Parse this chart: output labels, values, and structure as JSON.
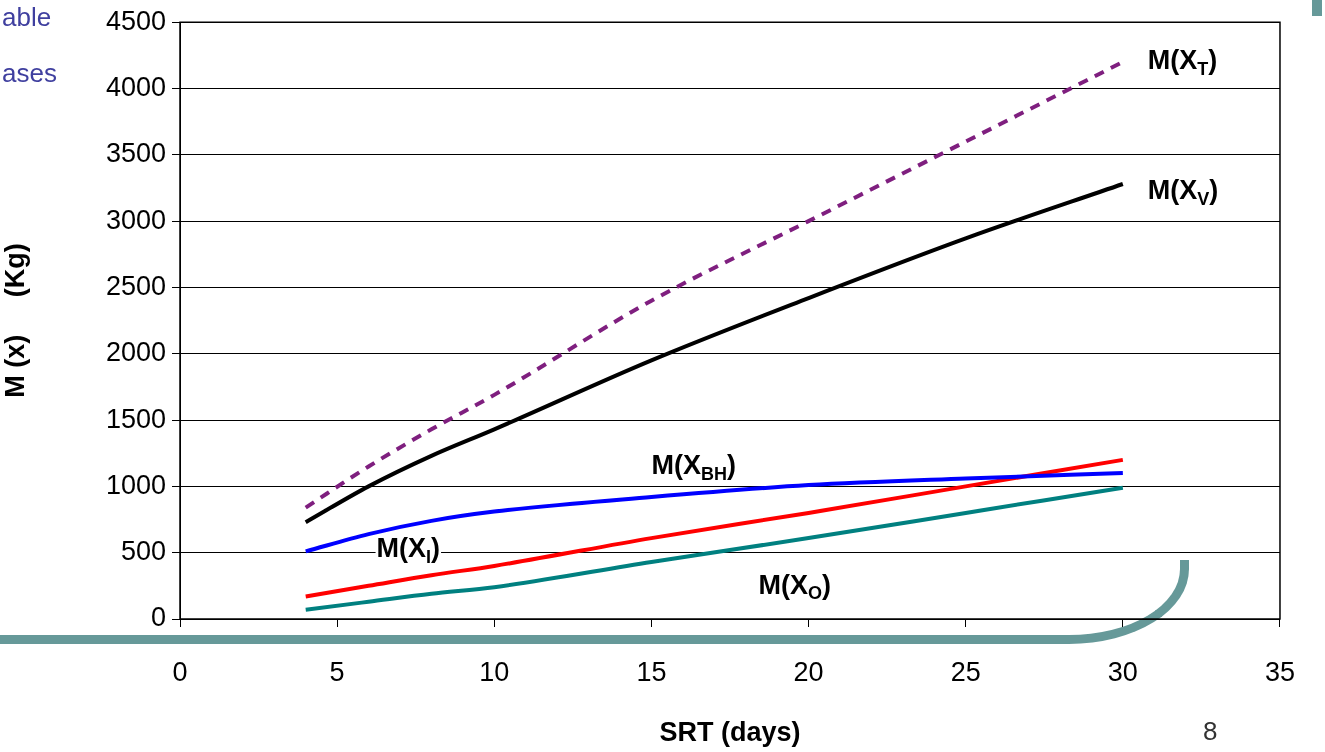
{
  "chart_data": {
    "type": "line",
    "xlabel": "SRT (days)",
    "ylabel": "M (x)     (Kg)",
    "xlim": [
      0,
      35
    ],
    "xticks": [
      0,
      5,
      10,
      15,
      20,
      25,
      30,
      35
    ],
    "ylim": [
      0,
      4500
    ],
    "yticks": [
      0,
      500,
      1000,
      1500,
      2000,
      2500,
      3000,
      3500,
      4000,
      4500
    ],
    "grid": "y",
    "legend": false,
    "marker": "none",
    "x": [
      4,
      6,
      8,
      10,
      15,
      20,
      25,
      30
    ],
    "series": [
      {
        "name": "M(X$_{T}$)",
        "color": "#7f1f7f",
        "line_style": "dashed",
        "values": [
          840,
          1150,
          1430,
          1690,
          2400,
          3000,
          3600,
          4200
        ]
      },
      {
        "name": "M(X$_{V}$)",
        "color": "#000000",
        "values": [
          730,
          1000,
          1230,
          1430,
          1950,
          2420,
          2870,
          3280
        ]
      },
      {
        "name": "M(X$_{BH}$)",
        "color": "#0000ff",
        "values": [
          510,
          640,
          740,
          810,
          920,
          1010,
          1060,
          1100
        ]
      },
      {
        "name": "M(X$_{I}$)",
        "color": "#ff0000",
        "values": [
          170,
          250,
          330,
          400,
          610,
          800,
          1000,
          1200
        ]
      },
      {
        "name": "M(X$_{O}$)",
        "color": "#008080",
        "values": [
          70,
          130,
          190,
          240,
          430,
          610,
          800,
          990
        ]
      }
    ],
    "annotations": [
      "able",
      "ases",
      "8"
    ]
  }
}
